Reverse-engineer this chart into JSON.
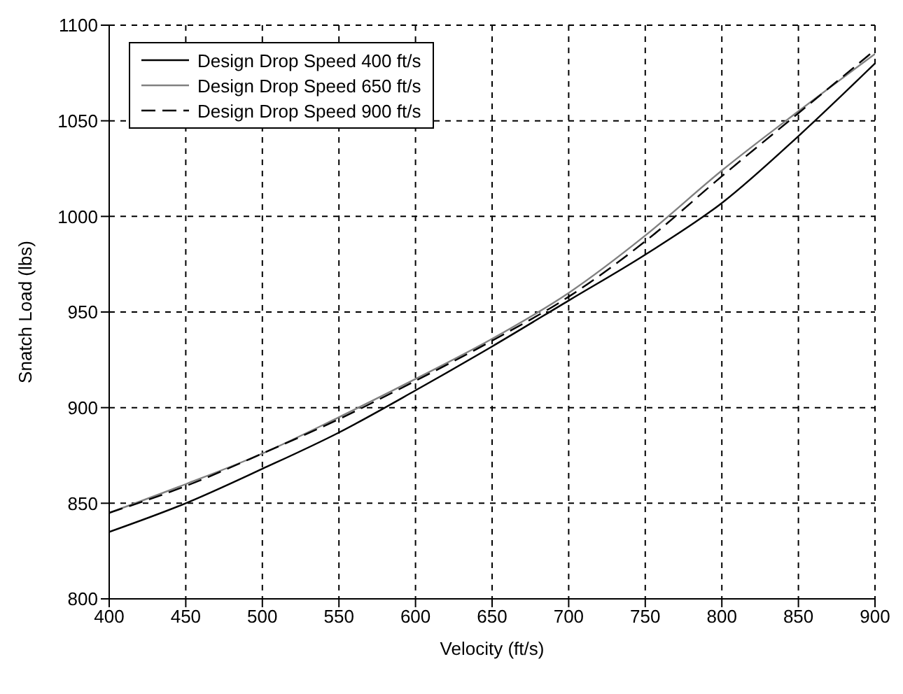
{
  "chart_data": {
    "type": "line",
    "xlabel": "Velocity (ft/s)",
    "ylabel": "Snatch Load (lbs)",
    "x": [
      400,
      450,
      500,
      550,
      600,
      650,
      700,
      750,
      800,
      850,
      900
    ],
    "xlim": [
      400,
      900
    ],
    "xticks": [
      400,
      450,
      500,
      550,
      600,
      650,
      700,
      750,
      800,
      850,
      900
    ],
    "ylim": [
      800,
      1100
    ],
    "yticks": [
      800,
      850,
      900,
      950,
      1000,
      1050,
      1100
    ],
    "grid": true,
    "legend": "top left",
    "marker": "none",
    "series": [
      {
        "name": "Design Drop Speed 400 ft/s",
        "color": "#000000",
        "line_style": "solid",
        "values": [
          835,
          850,
          868,
          887,
          909,
          932,
          956,
          980,
          1007,
          1042,
          1080
        ]
      },
      {
        "name": "Design Drop Speed 650 ft/s",
        "color": "#808080",
        "line_style": "solid",
        "values": [
          845,
          860,
          876,
          895,
          915,
          936,
          960,
          990,
          1024,
          1055,
          1085
        ]
      },
      {
        "name": "Design Drop Speed 900 ft/s",
        "color": "#000000",
        "line_style": "dashed",
        "values": [
          845,
          859,
          876,
          894,
          914,
          935,
          958,
          987,
          1021,
          1054,
          1087
        ]
      }
    ]
  }
}
